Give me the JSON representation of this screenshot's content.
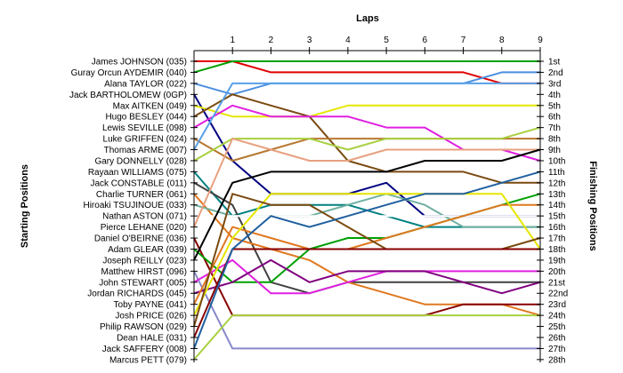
{
  "chart_data": {
    "type": "line",
    "title": "",
    "xlabel": "Laps",
    "ylabel_left": "Starting Positions",
    "ylabel_right": "Finishing Positions",
    "x": [
      0,
      1,
      2,
      3,
      4,
      5,
      6,
      7,
      8,
      9
    ],
    "x_tick_labels": [
      "1",
      "2",
      "3",
      "4",
      "5",
      "6",
      "7",
      "8",
      "9"
    ],
    "y_range": [
      1,
      28
    ],
    "y_inverted": true,
    "grid": false,
    "finishing_labels": [
      "1st",
      "2nd",
      "3rd",
      "4th",
      "5th",
      "6th",
      "7th",
      "8th",
      "9th",
      "10th",
      "11th",
      "12th",
      "13th",
      "14th",
      "15th",
      "16th",
      "17th",
      "18th",
      "19th",
      "20th",
      "21st",
      "22nd",
      "23rd",
      "24th",
      "25th",
      "26th",
      "27th",
      "28th"
    ],
    "series": [
      {
        "name": "James JOHNSON (035)",
        "color": "#e00000",
        "positions": [
          1,
          1,
          2,
          2,
          2,
          2,
          2,
          2,
          3,
          3
        ]
      },
      {
        "name": "Guray Orcun AYDEMIR (040)",
        "color": "#00a000",
        "positions": [
          2,
          1,
          1,
          1,
          1,
          1,
          1,
          1,
          1,
          1
        ]
      },
      {
        "name": "Alana TAYLOR (022)",
        "color": "#4a8fe0",
        "positions": [
          3,
          4,
          3,
          3,
          3,
          3,
          3,
          3,
          2,
          2
        ]
      },
      {
        "name": "Jack BARTHOLOMEW (0GP)",
        "color": "#000080",
        "positions": [
          4,
          10,
          13,
          13,
          13,
          12,
          15,
          15,
          15,
          15
        ]
      },
      {
        "name": "Max AITKEN (049)",
        "color": "#e6e600",
        "positions": [
          5,
          6,
          6,
          6,
          5,
          5,
          5,
          5,
          5,
          5
        ]
      },
      {
        "name": "Hugo BESLEY (044)",
        "color": "#7a4a10",
        "positions": [
          6,
          4,
          5,
          6,
          10,
          11,
          11,
          11,
          12,
          12
        ]
      },
      {
        "name": "Lewis SEVILLE (098)",
        "color": "#e020e0",
        "positions": [
          7,
          5,
          6,
          6,
          6,
          7,
          7,
          9,
          9,
          10
        ]
      },
      {
        "name": "Luke GRIFFEN (024)",
        "color": "#b87830",
        "positions": [
          8,
          10,
          9,
          8,
          8,
          8,
          8,
          8,
          8,
          8
        ]
      },
      {
        "name": "Thomas ARME (007)",
        "color": "#58a0e8",
        "positions": [
          9,
          3,
          3,
          3,
          3,
          3,
          3,
          3,
          3,
          3
        ]
      },
      {
        "name": "Gary DONNELLY (028)",
        "color": "#a8d040",
        "positions": [
          10,
          8,
          8,
          8,
          9,
          8,
          8,
          8,
          8,
          7
        ]
      },
      {
        "name": "Rayaan WILLIAMS (075)",
        "color": "#008080",
        "positions": [
          11,
          15,
          14,
          14,
          14,
          15,
          16,
          16,
          16,
          16
        ]
      },
      {
        "name": "Jack CONSTABLE (011)",
        "color": "#404040",
        "positions": [
          12,
          14,
          21,
          22,
          21,
          21,
          21,
          21,
          21,
          21
        ]
      },
      {
        "name": "Charlie TURNER (061)",
        "color": "#e07820",
        "positions": [
          13,
          17,
          18,
          19,
          21,
          22,
          23,
          23,
          23,
          24
        ]
      },
      {
        "name": "Hiroaki TSUJINOUE (033)",
        "color": "#70b0a0",
        "positions": [
          14,
          15,
          15,
          15,
          14,
          13,
          14,
          16,
          16,
          16
        ]
      },
      {
        "name": "Nathan ASTON (071)",
        "color": "#ffffff",
        "positions": [
          15,
          15,
          15,
          15,
          15,
          15,
          15,
          15,
          15,
          15
        ]
      },
      {
        "name": "Pierce LEHANE (020)",
        "color": "#e8a080",
        "positions": [
          16,
          8,
          9,
          10,
          10,
          9,
          9,
          9,
          9,
          9
        ]
      },
      {
        "name": "Daniel O'BEIRNE (036)",
        "color": "#880000",
        "positions": [
          17,
          24,
          24,
          24,
          24,
          24,
          24,
          23,
          23,
          23
        ]
      },
      {
        "name": "Adam GLEAR (039)",
        "color": "#00a000",
        "positions": [
          18,
          21,
          21,
          18,
          17,
          17,
          16,
          15,
          14,
          13
        ]
      },
      {
        "name": "Joseph REILLY (023)",
        "color": "#000000",
        "positions": [
          19,
          12,
          11,
          11,
          11,
          11,
          10,
          10,
          10,
          9
        ]
      },
      {
        "name": "Matthew HIRST (096)",
        "color": "#8888cc",
        "positions": [
          20,
          27,
          27,
          27,
          27,
          27,
          27,
          27,
          27,
          27
        ]
      },
      {
        "name": "John STEWART (005)",
        "color": "#e020e0",
        "positions": [
          21,
          19,
          22,
          22,
          21,
          20,
          20,
          20,
          20,
          20
        ]
      },
      {
        "name": "Jordan RICHARDS (045)",
        "color": "#800080",
        "positions": [
          22,
          21,
          19,
          21,
          20,
          20,
          20,
          21,
          22,
          21
        ]
      },
      {
        "name": "Toby PAYNE (041)",
        "color": "#e07820",
        "positions": [
          23,
          16,
          17,
          18,
          18,
          17,
          16,
          15,
          14,
          14
        ]
      },
      {
        "name": "Josh PRICE (026)",
        "color": "#e6e600",
        "positions": [
          24,
          17,
          13,
          13,
          13,
          13,
          13,
          13,
          13,
          18
        ]
      },
      {
        "name": "Philip RAWSON (029)",
        "color": "#7a4a10",
        "positions": [
          25,
          13,
          14,
          14,
          16,
          18,
          18,
          18,
          18,
          17
        ]
      },
      {
        "name": "Dean HALE (031)",
        "color": "#880000",
        "positions": [
          26,
          18,
          18,
          18,
          18,
          18,
          18,
          18,
          18,
          18
        ]
      },
      {
        "name": "Jack SAFFERY (008)",
        "color": "#2060a0",
        "positions": [
          27,
          18,
          15,
          16,
          15,
          14,
          13,
          13,
          12,
          11
        ]
      },
      {
        "name": "Marcus PETT (079)",
        "color": "#a8d040",
        "positions": [
          28,
          24,
          24,
          24,
          24,
          24,
          24,
          24,
          24,
          24
        ]
      }
    ]
  }
}
